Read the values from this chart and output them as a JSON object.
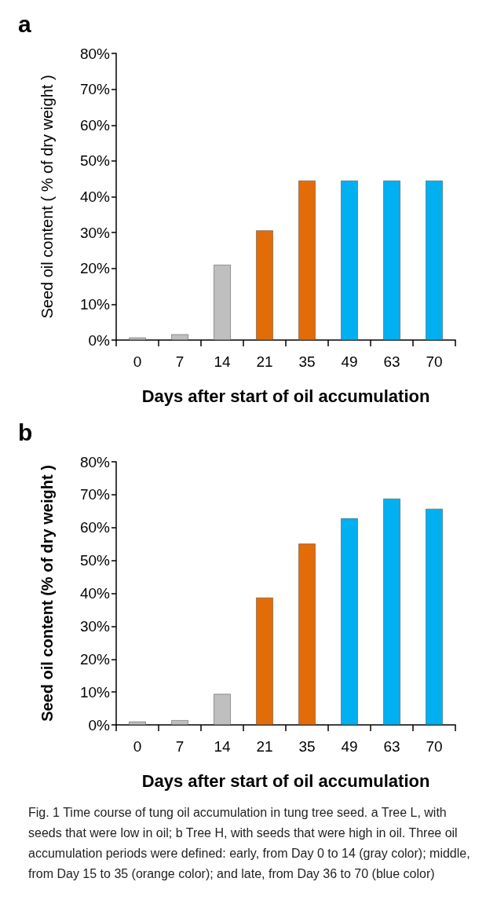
{
  "chart_data": [
    {
      "type": "bar",
      "title": "a",
      "xlabel": "Days after start of oil accumulation",
      "ylabel": "Seed oil content ( % of dry weight )",
      "categories": [
        "0",
        "7",
        "14",
        "21",
        "35",
        "49",
        "63",
        "70"
      ],
      "values": [
        0.7,
        1.6,
        21.0,
        30.6,
        44.5,
        44.5,
        44.5,
        44.5
      ],
      "colors": [
        "#bfbfbf",
        "#bfbfbf",
        "#bfbfbf",
        "#e36c09",
        "#e36c09",
        "#00b0f0",
        "#00b0f0",
        "#00b0f0"
      ],
      "ylim": [
        0,
        80
      ],
      "yticks": [
        {
          "value": 0,
          "label": "0%"
        },
        {
          "value": 10,
          "label": "10%"
        },
        {
          "value": 20,
          "label": "20%"
        },
        {
          "value": 30,
          "label": "30%"
        },
        {
          "value": 40,
          "label": "40%"
        },
        {
          "value": 50,
          "label": "50%"
        },
        {
          "value": 60,
          "label": "60%"
        },
        {
          "value": 70,
          "label": "70%"
        },
        {
          "value": 80,
          "label": "80%"
        }
      ]
    },
    {
      "type": "bar",
      "title": "b",
      "xlabel": "Days after start of oil accumulation",
      "ylabel": "Seed oil content (% of dry weight )",
      "categories": [
        "0",
        "7",
        "14",
        "21",
        "35",
        "49",
        "63",
        "70"
      ],
      "values": [
        1.0,
        1.4,
        9.4,
        38.7,
        55.1,
        62.8,
        68.8,
        65.7
      ],
      "colors": [
        "#bfbfbf",
        "#bfbfbf",
        "#bfbfbf",
        "#e36c09",
        "#e36c09",
        "#00b0f0",
        "#00b0f0",
        "#00b0f0"
      ],
      "ylim": [
        0,
        80
      ],
      "yticks": [
        {
          "value": 0,
          "label": "0%"
        },
        {
          "value": 10,
          "label": "10%"
        },
        {
          "value": 20,
          "label": "20%"
        },
        {
          "value": 30,
          "label": "30%"
        },
        {
          "value": 40,
          "label": "40%"
        },
        {
          "value": 50,
          "label": "50%"
        },
        {
          "value": 60,
          "label": "60%"
        },
        {
          "value": 70,
          "label": "70%"
        },
        {
          "value": 80,
          "label": "80%"
        }
      ],
      "annotations": [
        "Fig. 1 Time course of tung oil accumulation in tung tree seed. a Tree L, with seeds that were low in oil; b Tree H, with seeds that were high in oil. Three oil accumulation periods were defined: early, from Day 0 to 14 (gray color); middle, from Day 15 to 35 (orange color); and late, from Day 36 to 70 (blue color)"
      ]
    }
  ]
}
